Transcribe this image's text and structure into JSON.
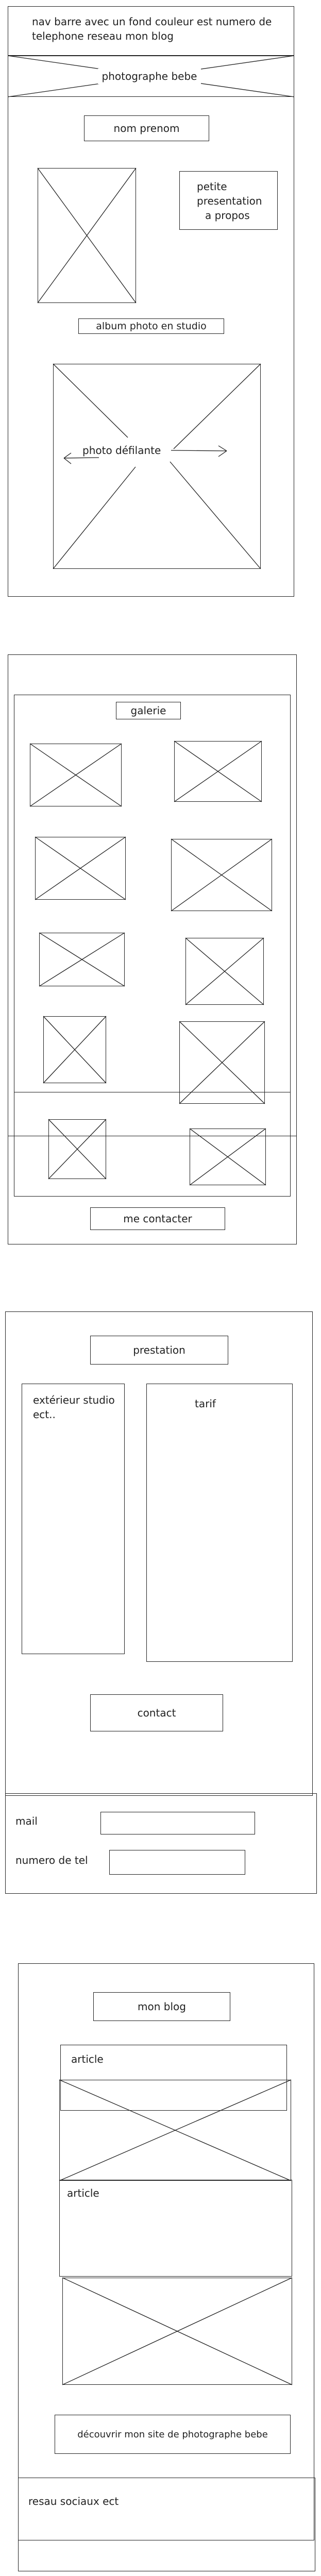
{
  "header": {
    "nav_line1": "nav barre avec un fond couleur est numero  de",
    "nav_line2": "telephone reseau   mon blog",
    "title": "photographe bebe"
  },
  "intro": {
    "name_label": "nom prenom",
    "presentation_line1": "petite",
    "presentation_line2": "presentation",
    "presentation_line3": "a propos",
    "album_label": "album photo en studio",
    "slideshow_label": "photo défilante"
  },
  "gallery": {
    "title": "galerie",
    "contact_button": "me contacter"
  },
  "services": {
    "title": "prestation",
    "studio_line1": "extérieur studio",
    "studio_line2": "ect..",
    "tariff_label": "tarif",
    "contact_button": "contact"
  },
  "contact_form": {
    "mail_label": "mail",
    "phone_label": "numero de tel"
  },
  "blog": {
    "title": "mon blog",
    "article1_label": "article",
    "article2_label": "article",
    "cta_label": "découvrir mon site de photographe bebe",
    "footer_label": "resau sociaux ect"
  }
}
